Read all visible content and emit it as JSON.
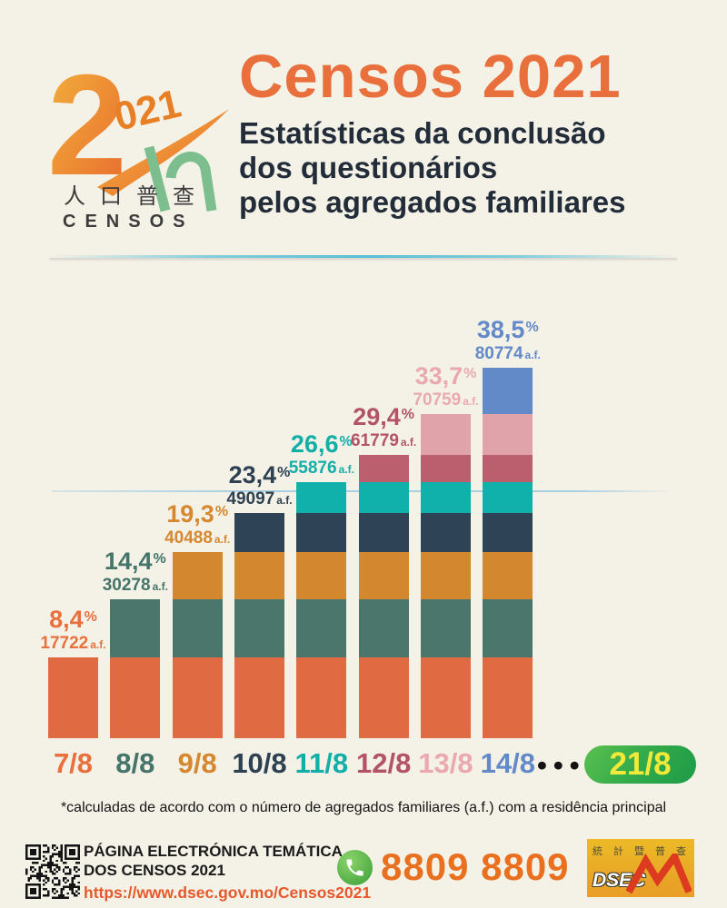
{
  "page": {
    "background": "#F4F1E7"
  },
  "header": {
    "logo": {
      "year_big": "2",
      "year_small": "021",
      "cn_name": "人口普查",
      "latin_name": "CENSOS"
    },
    "title": "Censos 2021",
    "title_color": "#E9703C",
    "subtitle_lines": [
      "Estatísticas da conclusão",
      "dos questionários",
      "pelos agregados familiares"
    ]
  },
  "chart_data": {
    "type": "bar",
    "subtype": "stacked-cumulative-by-day",
    "title": "Estatísticas da conclusão dos questionários pelos agregados familiares",
    "categories": [
      "7/8",
      "8/8",
      "9/8",
      "10/8",
      "11/8",
      "12/8",
      "13/8",
      "14/8"
    ],
    "cumulative_pct": [
      8.4,
      14.4,
      19.3,
      23.4,
      26.6,
      29.4,
      33.7,
      38.5
    ],
    "pct_display": [
      "8,4",
      "14,4",
      "19,3",
      "23,4",
      "26,6",
      "29,4",
      "33,7",
      "38,5"
    ],
    "pct_suffix": "%",
    "cumulative_af": [
      17722,
      30278,
      40488,
      49097,
      55876,
      61779,
      70759,
      80774
    ],
    "af_suffix": "a.f.",
    "segment_colors": [
      "#E06A41",
      "#4A766B",
      "#D3882F",
      "#2E4456",
      "#10B1AB",
      "#BB5F6F",
      "#DFA3A9",
      "#6289C8"
    ],
    "label_colors": [
      "#E8703C",
      "#45756A",
      "#D5882F",
      "#2E4153",
      "#12AEA8",
      "#B25366",
      "#E9A9AE",
      "#6289C8"
    ],
    "ylim": [
      0,
      43
    ],
    "reference_line": {
      "approx_pct": 25.7,
      "color": "#A9CFE1"
    },
    "ellipsis": "•••",
    "future_category": {
      "label": "21/8",
      "text_color": "#F3E93A",
      "bg_from": "#5CC04F",
      "bg_to": "#1E9B48"
    },
    "legend": "none",
    "grid": "off"
  },
  "footnote": "*calculadas de acordo com o número de agregados familiares (a.f.) com a residência principal",
  "footer": {
    "page_title_lines": [
      "PÁGINA ELECTRÓNICA TEMÁTICA",
      "DOS CENSOS 2021"
    ],
    "url": "https://www.dsec.gov.mo/Censos2021",
    "url_color": "#E7582B",
    "phone": "8809 8809",
    "phone_color": "#E9701F",
    "dsec_logo": {
      "cn_name": "統計暨普查",
      "name": "DSEC"
    }
  }
}
